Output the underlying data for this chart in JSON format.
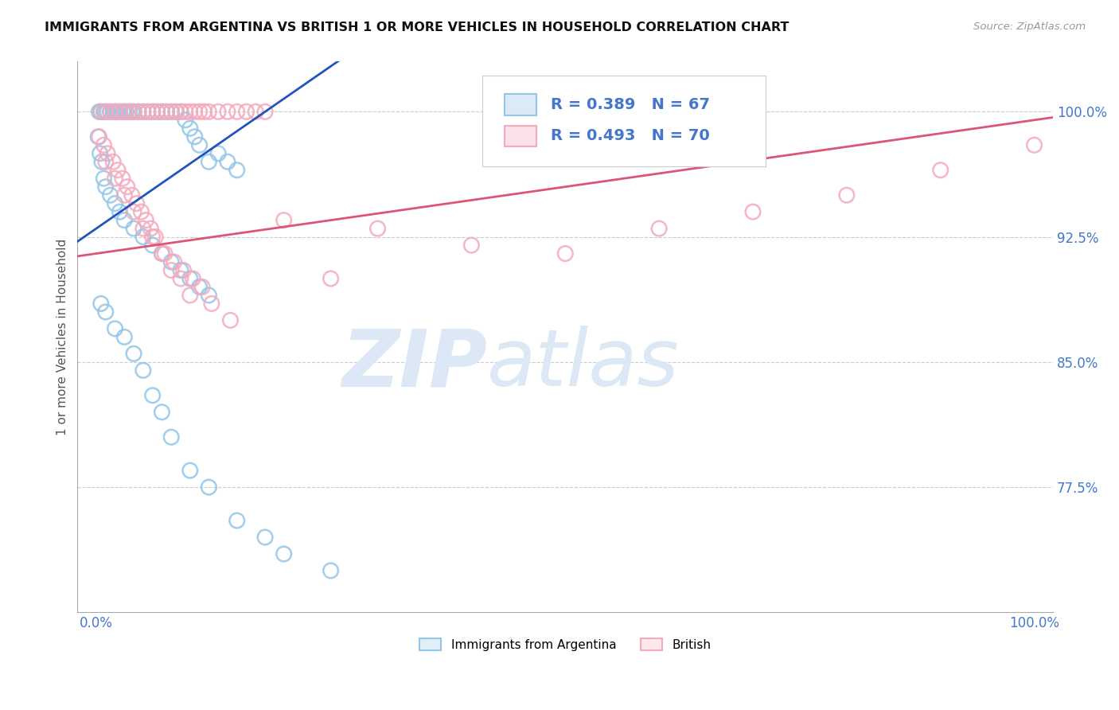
{
  "title": "IMMIGRANTS FROM ARGENTINA VS BRITISH 1 OR MORE VEHICLES IN HOUSEHOLD CORRELATION CHART",
  "source_text": "Source: ZipAtlas.com",
  "ylabel": "1 or more Vehicles in Household",
  "xlim": [
    -2,
    102
  ],
  "ylim": [
    70,
    103
  ],
  "ytick_vals": [
    77.5,
    85.0,
    92.5,
    100.0
  ],
  "xtick_vals": [
    0,
    100
  ],
  "blue_R": 0.389,
  "blue_N": 67,
  "pink_R": 0.493,
  "pink_N": 70,
  "blue_color": "#92C5E8",
  "pink_color": "#F4AABD",
  "blue_line_color": "#2255BB",
  "pink_line_color": "#DD5577",
  "legend_label_blue": "Immigrants from Argentina",
  "legend_label_pink": "British",
  "blue_line_x0": 0,
  "blue_line_y0": 93.0,
  "blue_line_x1": 18,
  "blue_line_y1": 100.0,
  "pink_line_x0": 0,
  "pink_line_y0": 91.5,
  "pink_line_x1": 100,
  "pink_line_y1": 99.5,
  "watermark_text": "ZIPatlas",
  "watermark_color": "#E8EEF5",
  "blue_x": [
    0.3,
    0.5,
    0.8,
    1.0,
    1.2,
    1.5,
    1.8,
    2.0,
    2.2,
    2.5,
    2.8,
    3.0,
    3.2,
    3.5,
    3.8,
    4.0,
    4.5,
    5.0,
    5.5,
    6.0,
    6.5,
    7.0,
    7.5,
    8.0,
    8.5,
    9.0,
    9.5,
    10.0,
    10.5,
    11.0,
    12.0,
    13.0,
    14.0,
    15.0,
    0.2,
    0.4,
    0.6,
    0.8,
    1.0,
    1.5,
    2.0,
    2.5,
    3.0,
    4.0,
    5.0,
    6.0,
    7.0,
    8.0,
    9.0,
    10.0,
    11.0,
    12.0,
    0.5,
    1.0,
    2.0,
    3.0,
    4.0,
    5.0,
    6.0,
    7.0,
    8.0,
    10.0,
    12.0,
    15.0,
    18.0,
    20.0,
    25.0
  ],
  "blue_y": [
    100.0,
    100.0,
    100.0,
    100.0,
    100.0,
    100.0,
    100.0,
    100.0,
    100.0,
    100.0,
    100.0,
    100.0,
    100.0,
    100.0,
    100.0,
    100.0,
    100.0,
    100.0,
    100.0,
    100.0,
    100.0,
    100.0,
    100.0,
    100.0,
    100.0,
    100.0,
    99.5,
    99.0,
    98.5,
    98.0,
    97.0,
    97.5,
    97.0,
    96.5,
    98.5,
    97.5,
    97.0,
    96.0,
    95.5,
    95.0,
    94.5,
    94.0,
    93.5,
    93.0,
    92.5,
    92.0,
    91.5,
    91.0,
    90.5,
    90.0,
    89.5,
    89.0,
    88.5,
    88.0,
    87.0,
    86.5,
    85.5,
    84.5,
    83.0,
    82.0,
    80.5,
    78.5,
    77.5,
    75.5,
    74.5,
    73.5,
    72.5
  ],
  "pink_x": [
    0.5,
    1.0,
    1.5,
    2.0,
    2.5,
    3.0,
    3.5,
    4.0,
    4.5,
    5.0,
    5.5,
    6.0,
    6.5,
    7.0,
    7.5,
    8.0,
    8.5,
    9.0,
    9.5,
    10.0,
    10.5,
    11.0,
    11.5,
    12.0,
    13.0,
    14.0,
    15.0,
    16.0,
    17.0,
    18.0,
    0.3,
    0.8,
    1.2,
    1.8,
    2.3,
    2.8,
    3.3,
    3.8,
    4.3,
    4.8,
    5.3,
    5.8,
    6.3,
    7.3,
    8.3,
    9.3,
    10.3,
    11.3,
    12.3,
    14.3,
    1.0,
    2.0,
    3.0,
    4.0,
    5.0,
    6.0,
    7.0,
    8.0,
    9.0,
    10.0,
    20.0,
    30.0,
    40.0,
    50.0,
    60.0,
    70.0,
    80.0,
    90.0,
    100.0,
    25.0
  ],
  "pink_y": [
    100.0,
    100.0,
    100.0,
    100.0,
    100.0,
    100.0,
    100.0,
    100.0,
    100.0,
    100.0,
    100.0,
    100.0,
    100.0,
    100.0,
    100.0,
    100.0,
    100.0,
    100.0,
    100.0,
    100.0,
    100.0,
    100.0,
    100.0,
    100.0,
    100.0,
    100.0,
    100.0,
    100.0,
    100.0,
    100.0,
    98.5,
    98.0,
    97.5,
    97.0,
    96.5,
    96.0,
    95.5,
    95.0,
    94.5,
    94.0,
    93.5,
    93.0,
    92.5,
    91.5,
    91.0,
    90.5,
    90.0,
    89.5,
    88.5,
    87.5,
    97.0,
    96.0,
    95.0,
    94.0,
    93.0,
    92.5,
    91.5,
    90.5,
    90.0,
    89.0,
    93.5,
    93.0,
    92.0,
    91.5,
    93.0,
    94.0,
    95.0,
    96.5,
    98.0,
    90.0
  ]
}
